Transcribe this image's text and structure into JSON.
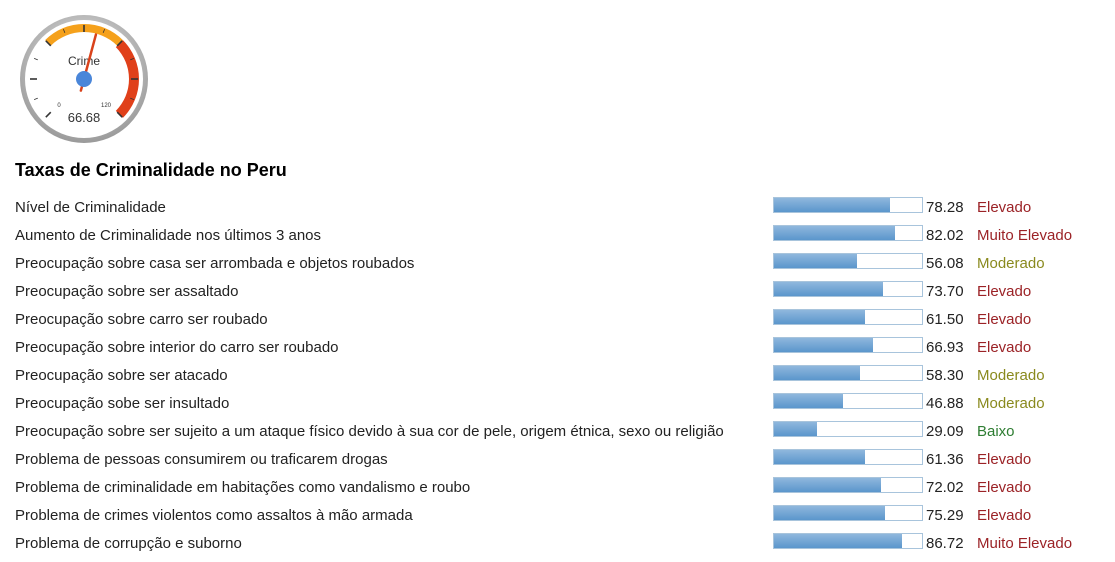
{
  "gauge": {
    "label": "Crime",
    "value": "66.68",
    "value_num": 66.68,
    "min_label": "0",
    "max_label": "120",
    "max": 120
  },
  "title": "Taxas de Criminalidade no Peru",
  "colors": {
    "Elevado": "#9b2226",
    "Muito Elevado": "#9b2226",
    "Moderado": "#8a8a1e",
    "Baixo": "#2e7d32"
  },
  "rows": [
    {
      "label": "Nível de Criminalidade",
      "value": "78.28",
      "pct": 78.28,
      "level": "Elevado"
    },
    {
      "label": "Aumento de Criminalidade nos últimos 3 anos",
      "value": "82.02",
      "pct": 82.02,
      "level": "Muito Elevado"
    },
    {
      "label": "Preocupação sobre casa ser arrombada e objetos roubados",
      "value": "56.08",
      "pct": 56.08,
      "level": "Moderado"
    },
    {
      "label": "Preocupação sobre ser assaltado",
      "value": "73.70",
      "pct": 73.7,
      "level": "Elevado"
    },
    {
      "label": "Preocupação sobre carro ser roubado",
      "value": "61.50",
      "pct": 61.5,
      "level": "Elevado"
    },
    {
      "label": "Preocupação sobre interior do carro ser roubado",
      "value": "66.93",
      "pct": 66.93,
      "level": "Elevado"
    },
    {
      "label": "Preocupação sobre ser atacado",
      "value": "58.30",
      "pct": 58.3,
      "level": "Moderado"
    },
    {
      "label": "Preocupação sobe ser insultado",
      "value": "46.88",
      "pct": 46.88,
      "level": "Moderado"
    },
    {
      "label": "Preocupação sobre ser sujeito a um ataque físico devido à sua cor de pele, origem étnica, sexo ou religião",
      "value": "29.09",
      "pct": 29.09,
      "level": "Baixo"
    },
    {
      "label": "Problema de pessoas consumirem ou traficarem drogas",
      "value": "61.36",
      "pct": 61.36,
      "level": "Elevado"
    },
    {
      "label": "Problema de criminalidade em habitações como vandalismo e roubo",
      "value": "72.02",
      "pct": 72.02,
      "level": "Elevado"
    },
    {
      "label": "Problema de crimes violentos como assaltos à mão armada",
      "value": "75.29",
      "pct": 75.29,
      "level": "Elevado"
    },
    {
      "label": "Problema de corrupção e suborno",
      "value": "86.72",
      "pct": 86.72,
      "level": "Muito Elevado"
    }
  ]
}
